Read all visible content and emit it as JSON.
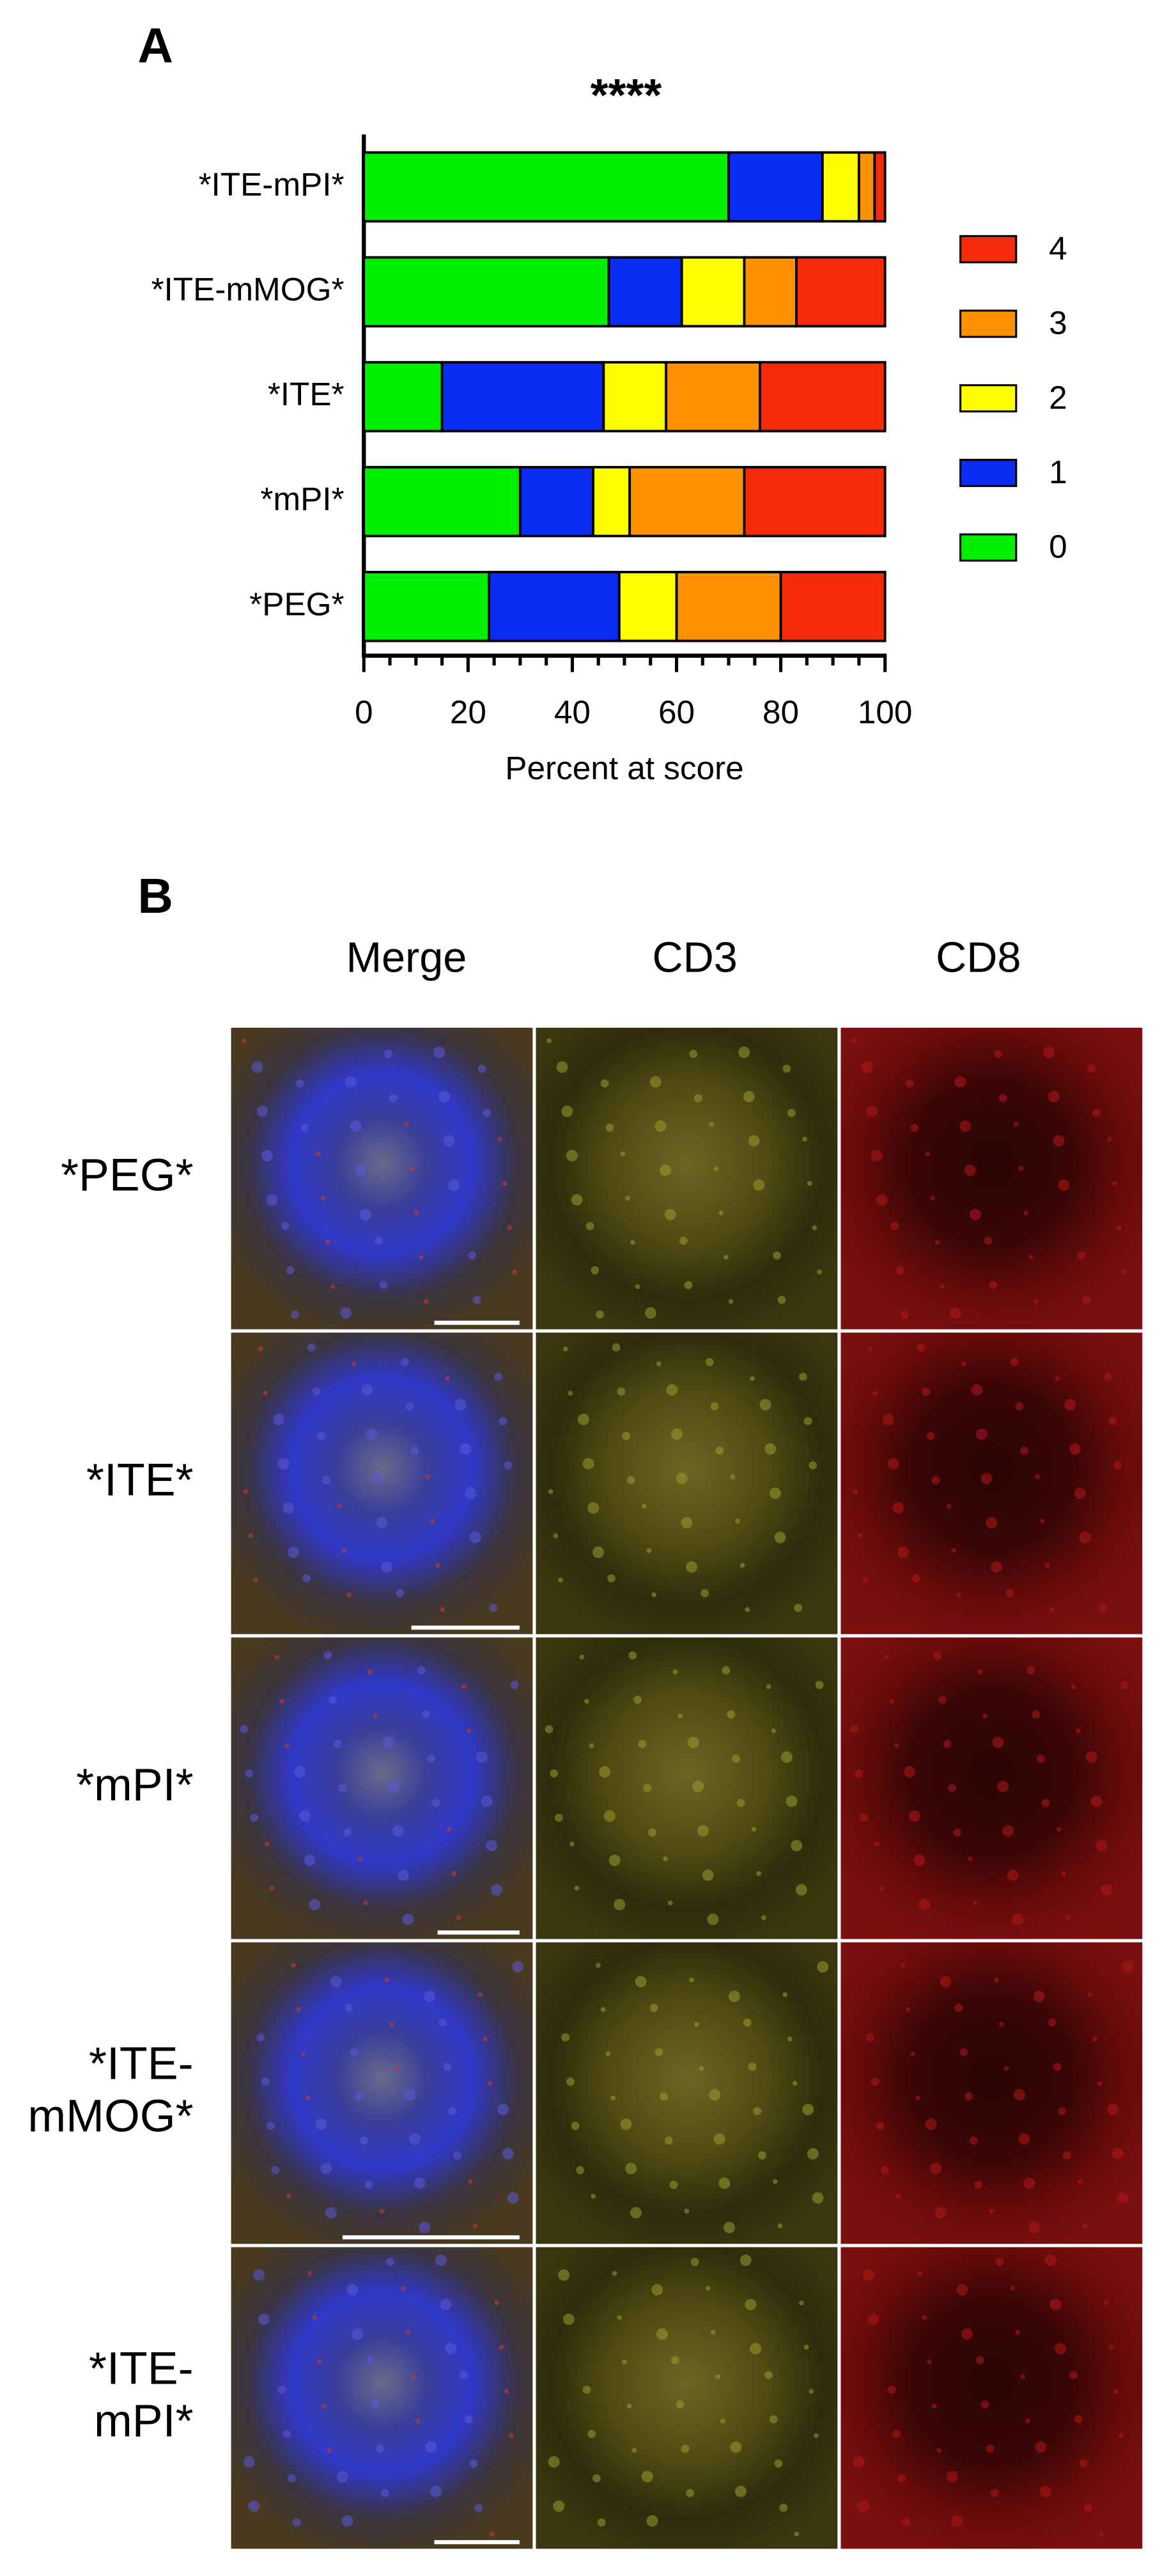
{
  "panel_labels": [
    "A",
    "B"
  ],
  "chart_data": {
    "type": "bar",
    "orientation": "horizontal",
    "stacked": true,
    "title": "****",
    "xlabel": "Percent at score",
    "categories": [
      "*ITE-mPI*",
      "*ITE-mMOG*",
      "*ITE*",
      "*mPI*",
      "*PEG*"
    ],
    "series": [
      {
        "name": "0",
        "color": "#00ee00",
        "values": [
          70,
          47,
          15,
          30,
          24
        ]
      },
      {
        "name": "1",
        "color": "#0a2cf5",
        "values": [
          18,
          14,
          31,
          14,
          25
        ]
      },
      {
        "name": "2",
        "color": "#ffff00",
        "values": [
          7,
          12,
          12,
          7,
          11
        ]
      },
      {
        "name": "3",
        "color": "#ff9100",
        "values": [
          3,
          10,
          18,
          22,
          20
        ]
      },
      {
        "name": "4",
        "color": "#f52a0a",
        "values": [
          2,
          17,
          24,
          27,
          20
        ]
      }
    ],
    "xlim": [
      0,
      100
    ],
    "xticks": [
      0,
      20,
      40,
      60,
      80,
      100
    ],
    "xminorticks": [
      5,
      10,
      15,
      25,
      30,
      35,
      45,
      50,
      55,
      65,
      70,
      75,
      85,
      90,
      95
    ],
    "legend": "right"
  },
  "panel_b": {
    "columns": [
      "Merge",
      "CD3",
      "CD8"
    ],
    "rows": [
      [
        "*PEG*"
      ],
      [
        "*ITE*"
      ],
      [
        "*mPI*"
      ],
      [
        "*ITE-",
        "mMOG*"
      ],
      [
        "*ITE-",
        "mPI*"
      ]
    ]
  }
}
